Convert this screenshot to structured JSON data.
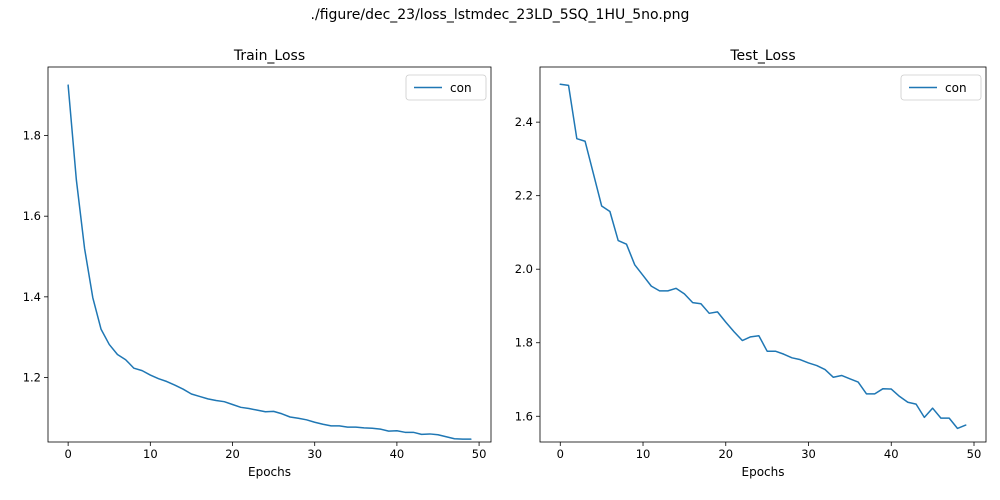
{
  "suptitle": "./figure/dec_23/loss_lstmdec_23LD_5SQ_1HU_5no.png",
  "chart_data": [
    {
      "type": "line",
      "title": "Train_Loss",
      "xlabel": "Epochs",
      "ylabel": "",
      "xlim": [
        -2.45,
        51.45
      ],
      "ylim": [
        1.04,
        1.97
      ],
      "xticks": [
        0,
        10,
        20,
        30,
        40,
        50
      ],
      "yticks": [
        1.2,
        1.4,
        1.6,
        1.8
      ],
      "ytick_labels": [
        "1.2",
        "1.4",
        "1.6",
        "1.8"
      ],
      "legend": "top-right",
      "color": "#1f77b4",
      "series": [
        {
          "name": "con",
          "x": [
            0,
            1,
            2,
            3,
            4,
            5,
            6,
            7,
            8,
            9,
            10,
            11,
            12,
            13,
            14,
            15,
            16,
            17,
            18,
            19,
            20,
            21,
            22,
            23,
            24,
            25,
            26,
            27,
            28,
            29,
            30,
            31,
            32,
            33,
            34,
            35,
            36,
            37,
            38,
            39,
            40,
            41,
            42,
            43,
            44,
            45,
            46,
            47,
            48,
            49
          ],
          "values": [
            1.925,
            1.69,
            1.52,
            1.398,
            1.32,
            1.282,
            1.257,
            1.244,
            1.223,
            1.217,
            1.206,
            1.197,
            1.19,
            1.181,
            1.171,
            1.159,
            1.153,
            1.147,
            1.143,
            1.14,
            1.133,
            1.126,
            1.123,
            1.119,
            1.115,
            1.116,
            1.11,
            1.102,
            1.099,
            1.095,
            1.089,
            1.084,
            1.08,
            1.08,
            1.077,
            1.077,
            1.075,
            1.074,
            1.072,
            1.067,
            1.068,
            1.064,
            1.064,
            1.059,
            1.06,
            1.058,
            1.053,
            1.048,
            1.047,
            1.047
          ]
        }
      ]
    },
    {
      "type": "line",
      "title": "Test_Loss",
      "xlabel": "Epochs",
      "ylabel": "",
      "xlim": [
        -2.45,
        51.45
      ],
      "ylim": [
        1.53,
        2.55
      ],
      "xticks": [
        0,
        10,
        20,
        30,
        40,
        50
      ],
      "yticks": [
        1.6,
        1.8,
        2.0,
        2.2,
        2.4
      ],
      "ytick_labels": [
        "1.6",
        "1.8",
        "2.0",
        "2.2",
        "2.4"
      ],
      "legend": "top-right",
      "color": "#1f77b4",
      "series": [
        {
          "name": "con",
          "x": [
            0,
            1,
            2,
            3,
            4,
            5,
            6,
            7,
            8,
            9,
            10,
            11,
            12,
            13,
            14,
            15,
            16,
            17,
            18,
            19,
            20,
            21,
            22,
            23,
            24,
            25,
            26,
            27,
            28,
            29,
            30,
            31,
            32,
            33,
            34,
            35,
            36,
            37,
            38,
            39,
            40,
            41,
            42,
            43,
            44,
            45,
            46,
            47,
            48,
            49
          ],
          "values": [
            2.503,
            2.5,
            2.355,
            2.348,
            2.26,
            2.172,
            2.157,
            2.078,
            2.068,
            2.012,
            1.983,
            1.954,
            1.941,
            1.941,
            1.948,
            1.933,
            1.909,
            1.906,
            1.88,
            1.884,
            1.856,
            1.83,
            1.806,
            1.816,
            1.819,
            1.777,
            1.777,
            1.769,
            1.759,
            1.754,
            1.745,
            1.738,
            1.727,
            1.706,
            1.711,
            1.702,
            1.693,
            1.661,
            1.661,
            1.675,
            1.674,
            1.654,
            1.638,
            1.633,
            1.597,
            1.622,
            1.595,
            1.595,
            1.567,
            1.576
          ]
        }
      ]
    }
  ]
}
